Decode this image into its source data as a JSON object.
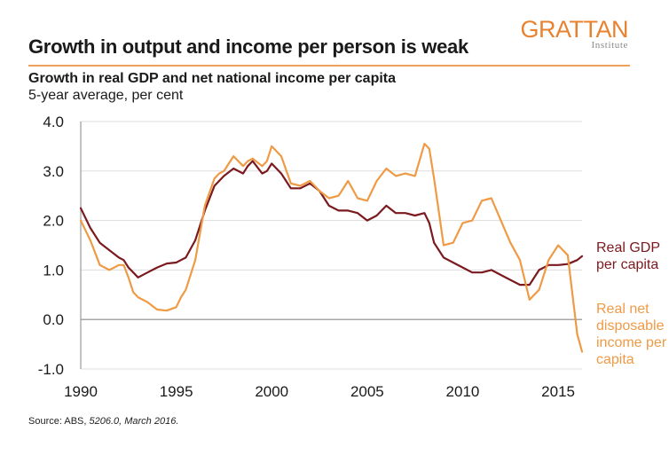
{
  "header": {
    "logo_main": "GRATTAN",
    "logo_sub": "Institute",
    "title": "Growth in output and income per person is weak",
    "subtitle": "Growth in real GDP and net national income per capita",
    "units": "5-year average, per cent"
  },
  "footer": {
    "source_prefix": "Source: ABS, ",
    "source_italic": "5206.0, March 2016."
  },
  "colors": {
    "gdp": "#7b1a1e",
    "income": "#ef9a45",
    "accent": "#e9822f",
    "gridline": "#dddddd",
    "zero_line": "#888888"
  },
  "chart_data": {
    "type": "line",
    "title": "Growth in real GDP and net national income per capita",
    "xlabel": "",
    "ylabel": "5-year average, per cent",
    "xlim": [
      1990,
      2016.25
    ],
    "ylim": [
      -1.0,
      4.0
    ],
    "x_ticks": [
      "1990",
      "1995",
      "2000",
      "2005",
      "2010",
      "2015"
    ],
    "y_ticks": [
      "4.0",
      "3.0",
      "2.0",
      "1.0",
      "0.0",
      "-1.0"
    ],
    "grid": true,
    "legend_position": "right (inline labels)",
    "series": [
      {
        "name": "Real GDP per capita",
        "label_lines": [
          "Real GDP",
          "per capita"
        ],
        "color": "#7b1a1e",
        "x": [
          1990,
          1990.5,
          1991,
          1991.5,
          1992,
          1992.25,
          1992.5,
          1992.75,
          1993,
          1993.5,
          1994,
          1994.5,
          1995,
          1995.25,
          1995.5,
          1996,
          1996.5,
          1997,
          1997.25,
          1997.5,
          1998,
          1998.5,
          1998.75,
          1999,
          1999.5,
          1999.75,
          2000,
          2000.5,
          2001,
          2001.5,
          2002,
          2002.5,
          2003,
          2003.5,
          2004,
          2004.5,
          2005,
          2005.5,
          2006,
          2006.5,
          2007,
          2007.5,
          2008,
          2008.25,
          2008.5,
          2009,
          2009.5,
          2010,
          2010.5,
          2011,
          2011.5,
          2012,
          2012.5,
          2013,
          2013.5,
          2014,
          2014.5,
          2015,
          2015.5,
          2016,
          2016.25
        ],
        "y": [
          2.25,
          1.85,
          1.55,
          1.4,
          1.25,
          1.2,
          1.05,
          0.95,
          0.85,
          0.95,
          1.05,
          1.13,
          1.15,
          1.2,
          1.25,
          1.6,
          2.2,
          2.7,
          2.8,
          2.9,
          3.05,
          2.95,
          3.1,
          3.2,
          2.95,
          3.0,
          3.15,
          2.95,
          2.65,
          2.65,
          2.75,
          2.6,
          2.3,
          2.2,
          2.2,
          2.15,
          2.0,
          2.1,
          2.3,
          2.15,
          2.15,
          2.1,
          2.15,
          1.95,
          1.55,
          1.25,
          1.15,
          1.05,
          0.95,
          0.95,
          1.0,
          0.9,
          0.8,
          0.7,
          0.7,
          1.0,
          1.1,
          1.1,
          1.12,
          1.2,
          1.28
        ]
      },
      {
        "name": "Real net disposable income per capita",
        "label_lines": [
          "Real net",
          "disposable",
          "income per",
          "capita"
        ],
        "color": "#ef9a45",
        "x": [
          1990,
          1990.5,
          1991,
          1991.5,
          1992,
          1992.25,
          1992.5,
          1992.75,
          1993,
          1993.5,
          1994,
          1994.5,
          1995,
          1995.25,
          1995.5,
          1996,
          1996.5,
          1997,
          1997.25,
          1997.5,
          1998,
          1998.5,
          1998.75,
          1999,
          1999.5,
          1999.75,
          2000,
          2000.5,
          2001,
          2001.5,
          2002,
          2002.5,
          2003,
          2003.5,
          2004,
          2004.5,
          2005,
          2005.5,
          2006,
          2006.5,
          2007,
          2007.5,
          2008,
          2008.25,
          2008.5,
          2009,
          2009.5,
          2010,
          2010.5,
          2011,
          2011.5,
          2012,
          2012.5,
          2013,
          2013.5,
          2014,
          2014.5,
          2015,
          2015.5,
          2016,
          2016.25
        ],
        "y": [
          2.0,
          1.6,
          1.1,
          1.0,
          1.1,
          1.1,
          0.85,
          0.55,
          0.45,
          0.35,
          0.2,
          0.18,
          0.25,
          0.45,
          0.6,
          1.2,
          2.3,
          2.85,
          2.95,
          3.0,
          3.3,
          3.1,
          3.2,
          3.25,
          3.1,
          3.2,
          3.5,
          3.3,
          2.75,
          2.7,
          2.8,
          2.6,
          2.45,
          2.5,
          2.8,
          2.45,
          2.4,
          2.8,
          3.05,
          2.9,
          2.95,
          2.9,
          3.55,
          3.45,
          2.85,
          1.5,
          1.55,
          1.95,
          2.0,
          2.4,
          2.45,
          2.0,
          1.55,
          1.2,
          0.4,
          0.6,
          1.2,
          1.5,
          1.3,
          -0.3,
          -0.65
        ]
      }
    ]
  }
}
